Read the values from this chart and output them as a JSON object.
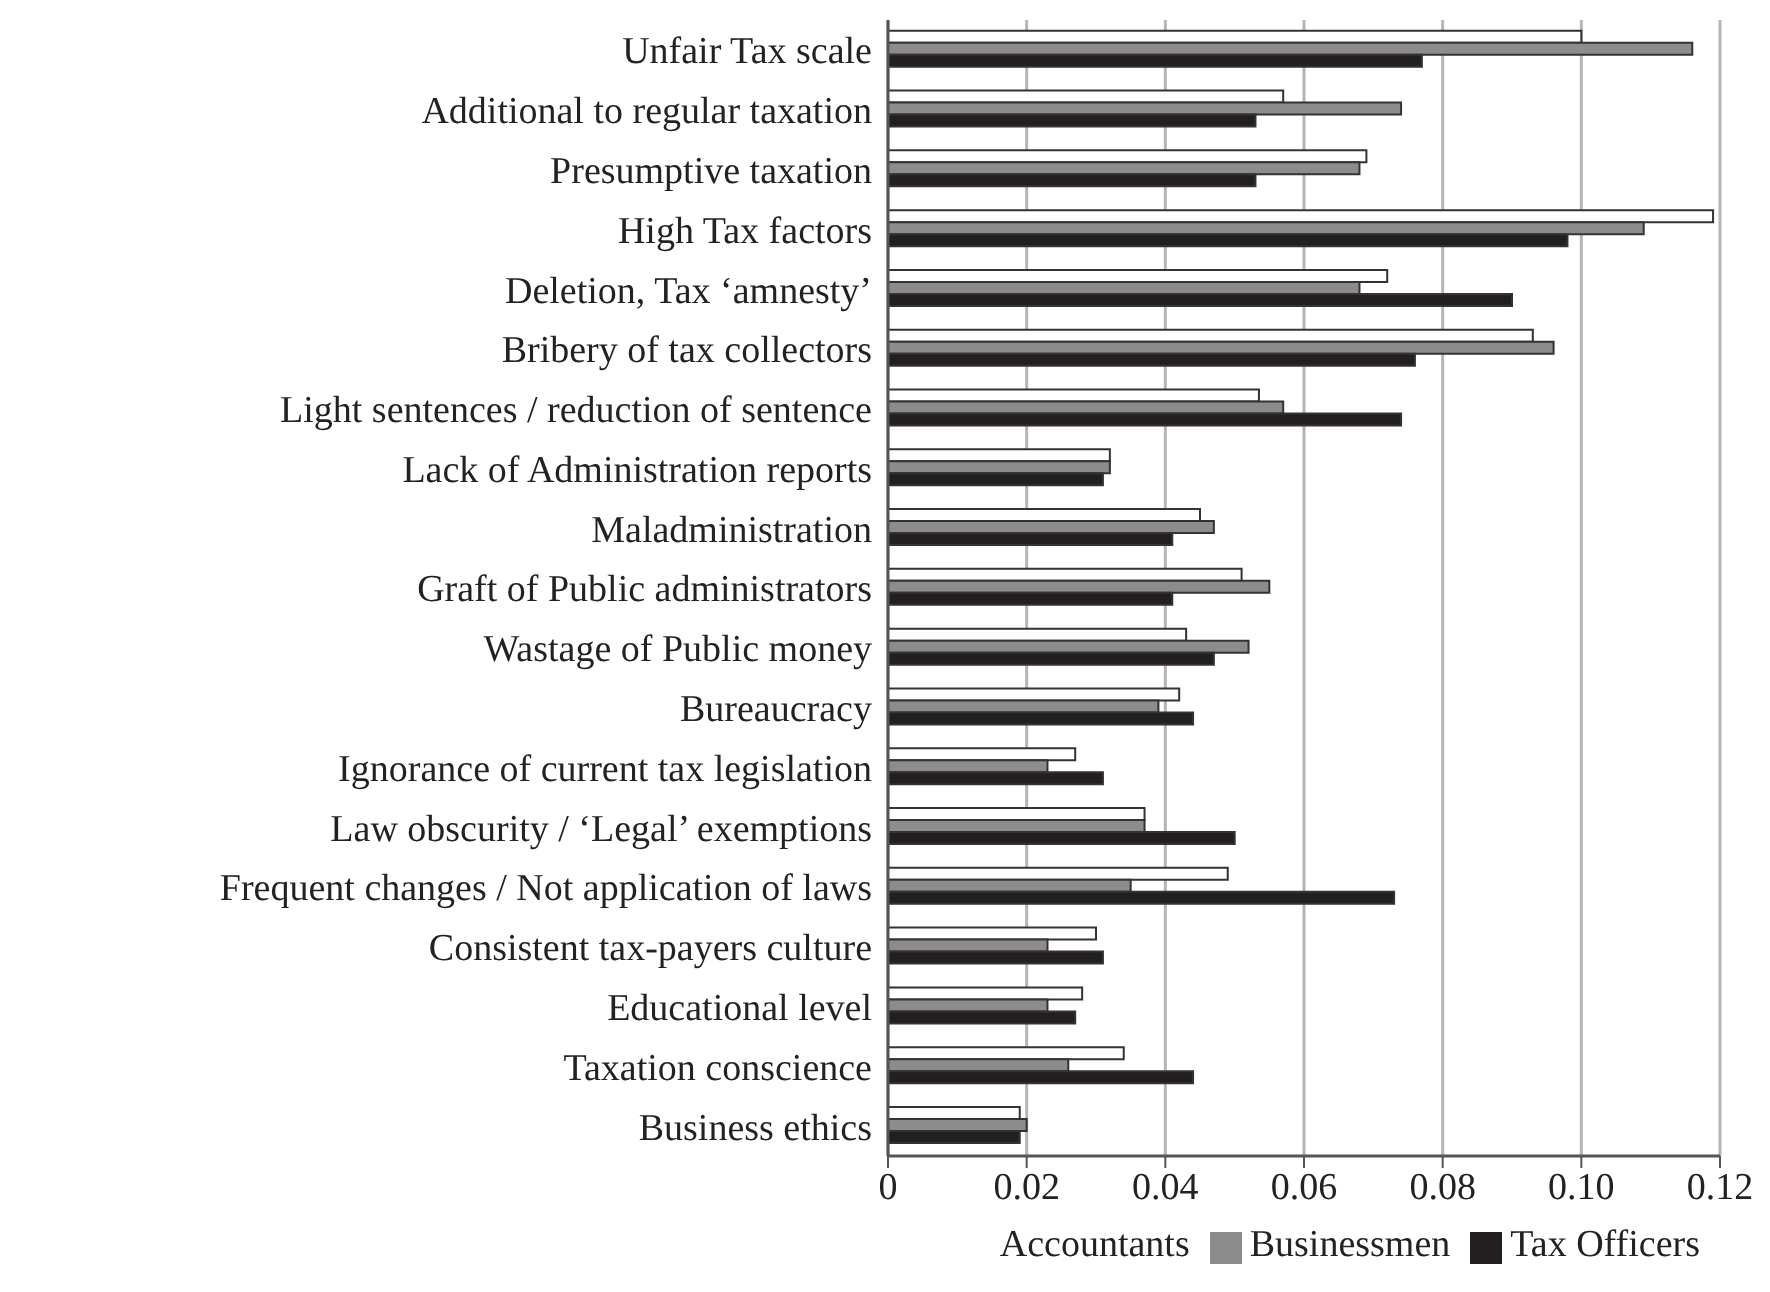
{
  "chart_data": {
    "type": "bar",
    "orientation": "horizontal",
    "categories": [
      "Unfair Tax scale",
      "Additional to regular taxation",
      "Presumptive taxation",
      "High Tax factors",
      "Deletion, Tax ‘amnesty’",
      "Bribery of tax collectors",
      "Light sentences / reduction of sentence",
      "Lack of Administration reports",
      "Maladministration",
      "Graft of Public administrators",
      "Wastage of Public money",
      "Bureaucracy",
      "Ignorance of current tax legislation",
      "Law obscurity / ‘Legal’ exemptions",
      "Frequent changes / Not application of laws",
      "Consistent tax-payers culture",
      "Educational level",
      "Taxation conscience",
      "Business ethics"
    ],
    "series": [
      {
        "name": "Accountants",
        "color": "#ffffff",
        "values": [
          0.1,
          0.057,
          0.069,
          0.119,
          0.072,
          0.093,
          0.0535,
          0.032,
          0.045,
          0.051,
          0.043,
          0.042,
          0.027,
          0.037,
          0.049,
          0.03,
          0.028,
          0.034,
          0.019
        ]
      },
      {
        "name": "Businessmen",
        "color": "#8c8c8c",
        "values": [
          0.116,
          0.074,
          0.068,
          0.109,
          0.068,
          0.096,
          0.057,
          0.032,
          0.047,
          0.055,
          0.052,
          0.039,
          0.023,
          0.037,
          0.035,
          0.023,
          0.023,
          0.026,
          0.02
        ]
      },
      {
        "name": "Tax Officers",
        "color": "#231f20",
        "values": [
          0.077,
          0.053,
          0.053,
          0.098,
          0.09,
          0.076,
          0.074,
          0.031,
          0.041,
          0.041,
          0.047,
          0.044,
          0.031,
          0.05,
          0.073,
          0.031,
          0.027,
          0.044,
          0.019
        ]
      }
    ],
    "xlim": [
      0,
      0.12
    ],
    "xticks": [
      {
        "value": 0,
        "label": "0"
      },
      0.02,
      0.04,
      0.06,
      0.08,
      {
        "value": 0.1,
        "label": "0.10"
      },
      0.12
    ],
    "grid": "x",
    "legend": "bottom right"
  }
}
